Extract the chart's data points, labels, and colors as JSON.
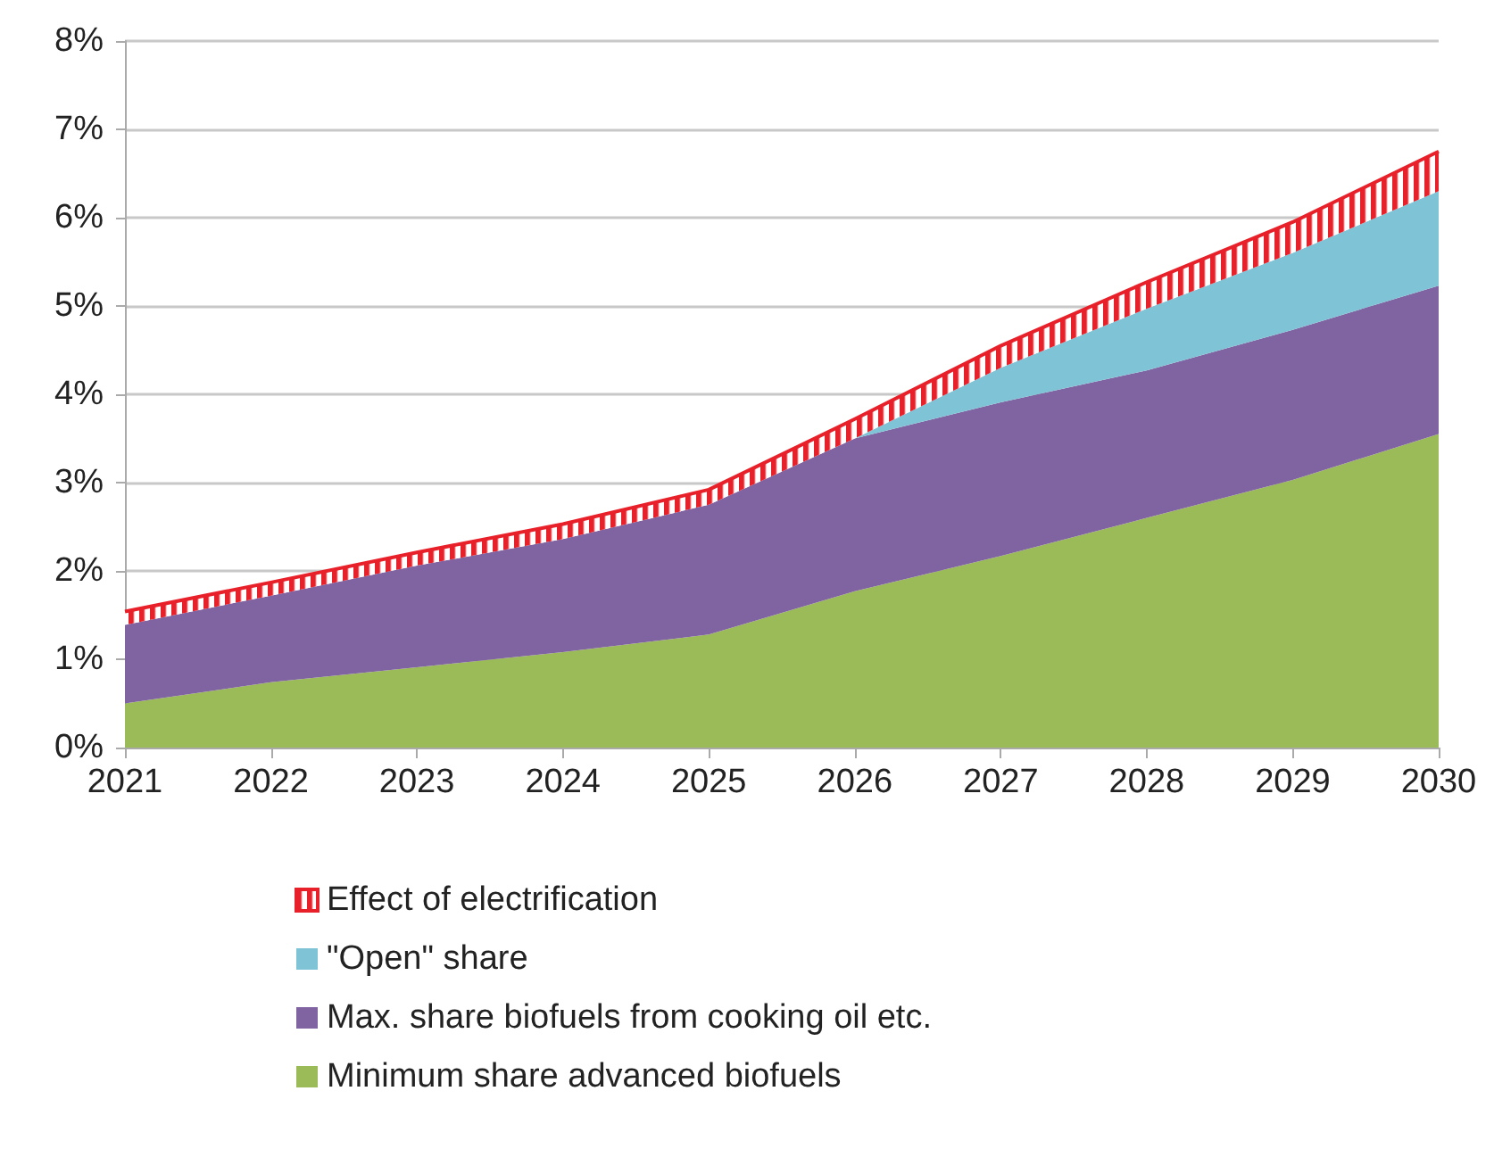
{
  "chart_data": {
    "type": "area",
    "stacked": true,
    "grid": "y",
    "legend": "bottom",
    "marker": "none",
    "categories": [
      "2021",
      "2022",
      "2023",
      "2024",
      "2025",
      "2026",
      "2027",
      "2028",
      "2029",
      "2030"
    ],
    "ylim": [
      0,
      8
    ],
    "yticks": [
      {
        "value": 0,
        "label": "0%"
      },
      {
        "value": 1,
        "label": "1%"
      },
      {
        "value": 2,
        "label": "2%"
      },
      {
        "value": 3,
        "label": "3%"
      },
      {
        "value": 4,
        "label": "4%"
      },
      {
        "value": 5,
        "label": "5%"
      },
      {
        "value": 6,
        "label": "6%"
      },
      {
        "value": 7,
        "label": "7%"
      },
      {
        "value": 8,
        "label": "8%"
      }
    ],
    "series": [
      {
        "name": "Minimum share advanced biofuels",
        "color": "#9bbb59",
        "values": [
          0.5,
          0.74,
          0.91,
          1.08,
          1.28,
          1.77,
          2.17,
          2.6,
          3.03,
          3.55
        ]
      },
      {
        "name": "Max. share biofuels from cooking oil etc.",
        "color": "#8064a2",
        "values": [
          0.89,
          0.98,
          1.15,
          1.28,
          1.47,
          1.73,
          1.74,
          1.67,
          1.7,
          1.68
        ]
      },
      {
        "name": "\"Open\" share",
        "color": "#7ec4d6",
        "values": [
          0,
          0,
          0,
          0,
          0,
          0,
          0.39,
          0.7,
          0.87,
          1.07
        ]
      },
      {
        "name": "Effect of electrification",
        "color": "#e8202a",
        "values": [
          0.15,
          0.15,
          0.15,
          0.17,
          0.17,
          0.22,
          0.25,
          0.3,
          0.35,
          0.45
        ]
      }
    ]
  }
}
